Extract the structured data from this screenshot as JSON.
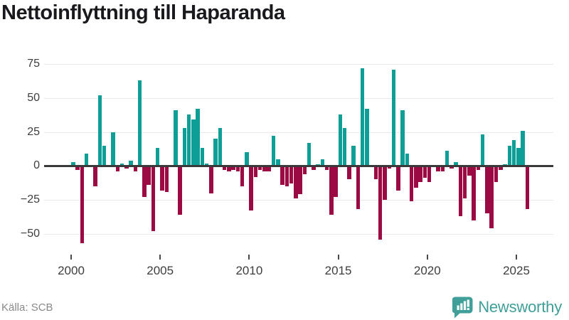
{
  "title": "Nettoinflyttning till Haparanda",
  "source": {
    "label": "Källa: SCB"
  },
  "brand": {
    "name": "Newsworthy",
    "color": "#3f9f98"
  },
  "colors": {
    "positive": "#0d9e98",
    "negative": "#9b0a43",
    "gridline": "#e9e9e9",
    "zero_line": "#3a3a3a",
    "axis_text": "#3d3d3d"
  },
  "chart_data": {
    "type": "bar",
    "title": "Nettoinflyttning till Haparanda",
    "x_unit": "quarter",
    "start_year": 2000,
    "start_quarter": 1,
    "end_label": "2025-Q3",
    "grid": "horizontal-only",
    "legend": "none",
    "ylim": [
      -62,
      80
    ],
    "y_ticks": [
      75,
      50,
      25,
      0,
      -25,
      -50
    ],
    "y_tick_labels": [
      "75",
      "50",
      "25",
      "0",
      "−25",
      "−50"
    ],
    "x_ticks": [
      2000,
      2005,
      2010,
      2015,
      2020,
      2025
    ],
    "x_tick_labels": [
      "2000",
      "2005",
      "2010",
      "2015",
      "2020",
      "2025"
    ],
    "series": [
      {
        "name": "Nettoinflyttning",
        "values": [
          3,
          -3,
          -57,
          9,
          0,
          -15,
          52,
          15,
          -1,
          25,
          -4,
          2,
          -2,
          4,
          -4,
          63,
          -23,
          -14,
          -48,
          13,
          -18,
          -19,
          0,
          41,
          -36,
          28,
          38,
          34,
          42,
          13,
          2,
          -20,
          20,
          28,
          -3,
          -4,
          -3,
          -4,
          -15,
          10,
          -33,
          -8,
          -3,
          -4,
          -4,
          22,
          5,
          -14,
          -15,
          -13,
          -24,
          -21,
          -6,
          17,
          -3,
          1,
          5,
          -3,
          -36,
          -23,
          38,
          28,
          -10,
          15,
          -32,
          72,
          42,
          0,
          -10,
          -54,
          -25,
          -2,
          71,
          -18,
          41,
          9,
          -26,
          -16,
          -12,
          -9,
          -12,
          0,
          -4,
          -4,
          11,
          -2,
          3,
          -37,
          -24,
          -7,
          -40,
          -3,
          23,
          -35,
          -46,
          -12,
          -3,
          1,
          15,
          19,
          13,
          26,
          -32
        ]
      }
    ]
  }
}
